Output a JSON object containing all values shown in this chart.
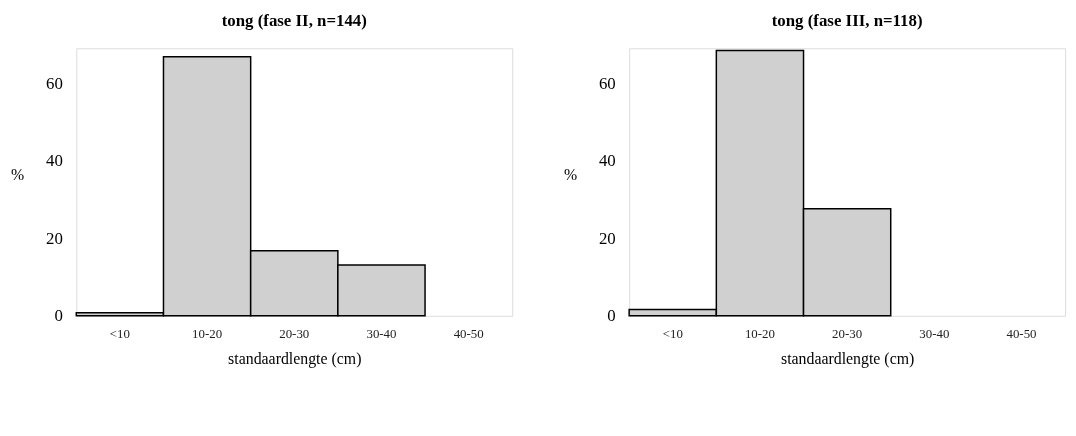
{
  "chart_data": [
    {
      "type": "bar",
      "title": "tong (fase II, n=144)",
      "xlabel": "standaardlengte (cm)",
      "ylabel": "%",
      "categories": [
        "<10",
        "10-20",
        "20-30",
        "30-40",
        "40-50"
      ],
      "values": [
        0.8,
        66.8,
        16.8,
        13.1,
        0
      ],
      "color": "#d0d0d0",
      "ylim": [
        0,
        69
      ],
      "yticks": [
        0,
        20,
        40,
        60
      ],
      "grid": false
    },
    {
      "type": "bar",
      "title": "tong (fase III, n=118)",
      "xlabel": "standaardlengte (cm)",
      "ylabel": "%",
      "categories": [
        "<10",
        "10-20",
        "20-30",
        "30-40",
        "40-50"
      ],
      "values": [
        1.6,
        68.4,
        27.6,
        0,
        0
      ],
      "color": "#d0d0d0",
      "ylim": [
        0,
        69
      ],
      "yticks": [
        0,
        20,
        40,
        60
      ],
      "grid": false
    }
  ]
}
